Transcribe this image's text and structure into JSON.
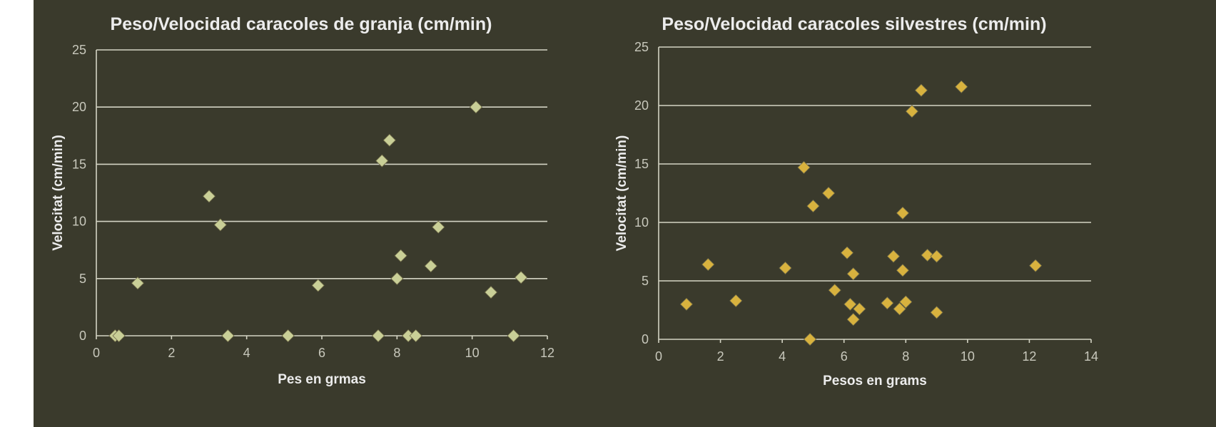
{
  "chart_data": [
    {
      "type": "scatter",
      "title": "Peso/Velocidad  caracoles de granja (cm/min)",
      "xlabel": "Pes en grmas",
      "ylabel": "Velocitat (cm/min)",
      "xlim": [
        0,
        12
      ],
      "ylim": [
        0,
        25
      ],
      "xticks": [
        "0",
        "2",
        "4",
        "6",
        "8",
        "10",
        "12"
      ],
      "yticks": [
        "0",
        "5",
        "10",
        "15",
        "20",
        "25"
      ],
      "grid": true,
      "marker": "diamond",
      "color": "#c9cf97",
      "points": [
        {
          "x": 0.5,
          "y": 0
        },
        {
          "x": 0.6,
          "y": 0
        },
        {
          "x": 1.1,
          "y": 4.6
        },
        {
          "x": 3.0,
          "y": 12.2
        },
        {
          "x": 3.3,
          "y": 9.7
        },
        {
          "x": 3.5,
          "y": 0
        },
        {
          "x": 5.1,
          "y": 0
        },
        {
          "x": 5.9,
          "y": 4.4
        },
        {
          "x": 7.5,
          "y": 0
        },
        {
          "x": 7.6,
          "y": 15.3
        },
        {
          "x": 7.8,
          "y": 17.1
        },
        {
          "x": 8.0,
          "y": 5.0
        },
        {
          "x": 8.1,
          "y": 7.0
        },
        {
          "x": 8.3,
          "y": 0
        },
        {
          "x": 8.5,
          "y": 0
        },
        {
          "x": 8.9,
          "y": 6.1
        },
        {
          "x": 9.1,
          "y": 9.5
        },
        {
          "x": 10.1,
          "y": 20.0
        },
        {
          "x": 10.5,
          "y": 3.8
        },
        {
          "x": 11.1,
          "y": 0
        },
        {
          "x": 11.3,
          "y": 5.1
        }
      ]
    },
    {
      "type": "scatter",
      "title": "Peso/Velocidad  caracoles silvestres (cm/min)",
      "xlabel": "Pesos en grams",
      "ylabel": "Velocitat (cm/min)",
      "xlim": [
        0,
        14
      ],
      "ylim": [
        0,
        25
      ],
      "xticks": [
        "0",
        "2",
        "4",
        "6",
        "8",
        "10",
        "12",
        "14"
      ],
      "yticks": [
        "0",
        "5",
        "10",
        "15",
        "20",
        "25"
      ],
      "grid": true,
      "marker": "diamond",
      "color": "#d8b23e",
      "points": [
        {
          "x": 0.9,
          "y": 3.0
        },
        {
          "x": 1.6,
          "y": 6.4
        },
        {
          "x": 2.5,
          "y": 3.3
        },
        {
          "x": 4.1,
          "y": 6.1
        },
        {
          "x": 4.7,
          "y": 14.7
        },
        {
          "x": 4.9,
          "y": 0
        },
        {
          "x": 5.0,
          "y": 11.4
        },
        {
          "x": 5.5,
          "y": 12.5
        },
        {
          "x": 5.7,
          "y": 4.2
        },
        {
          "x": 6.1,
          "y": 7.4
        },
        {
          "x": 6.2,
          "y": 3.0
        },
        {
          "x": 6.3,
          "y": 1.7
        },
        {
          "x": 6.3,
          "y": 5.6
        },
        {
          "x": 6.5,
          "y": 2.6
        },
        {
          "x": 7.4,
          "y": 3.1
        },
        {
          "x": 7.6,
          "y": 7.1
        },
        {
          "x": 7.8,
          "y": 2.6
        },
        {
          "x": 7.9,
          "y": 5.9
        },
        {
          "x": 7.9,
          "y": 10.8
        },
        {
          "x": 8.0,
          "y": 3.2
        },
        {
          "x": 8.2,
          "y": 19.5
        },
        {
          "x": 8.5,
          "y": 21.3
        },
        {
          "x": 8.7,
          "y": 7.2
        },
        {
          "x": 9.0,
          "y": 2.3
        },
        {
          "x": 9.0,
          "y": 7.1
        },
        {
          "x": 9.8,
          "y": 21.6
        },
        {
          "x": 12.2,
          "y": 6.3
        }
      ]
    }
  ]
}
